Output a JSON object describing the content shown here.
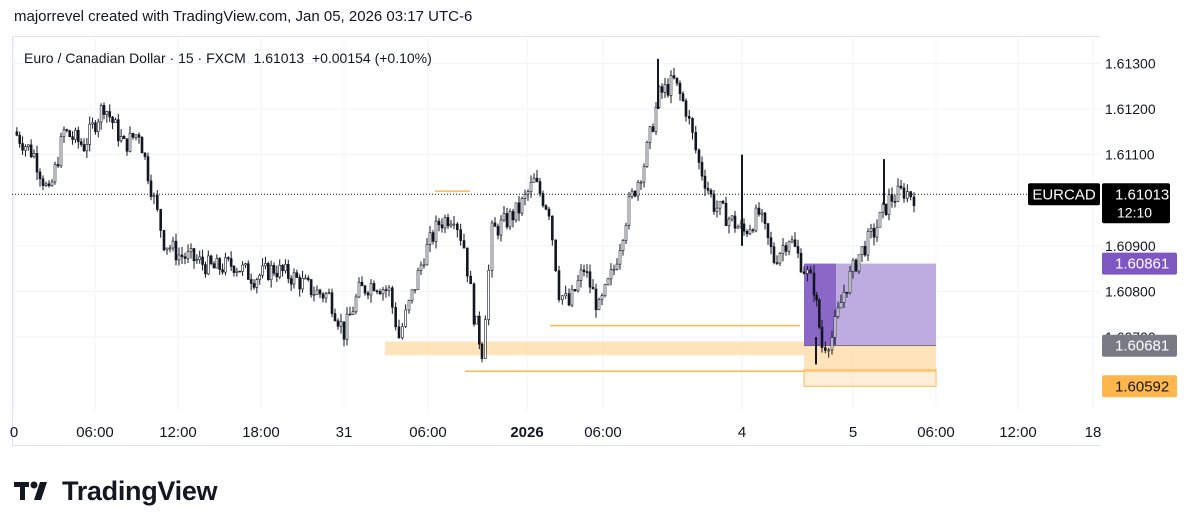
{
  "header": {
    "caption": "majorrevel created with TradingView.com, Jan 05, 2026 03:17 UTC-6",
    "legend": "Euro / Canadian Dollar · 15 · FXCM  1.61013  +0.00154 (+0.10%)"
  },
  "brand": {
    "name": "TradingView"
  },
  "colors": {
    "candle": "#131722",
    "grid": "#f0f3fa",
    "purple": "#7e57c2",
    "purple_fill": "#b39ddb",
    "orange": "#ffb74d",
    "orange_fill": "#ffe0b2",
    "gray_label": "#787b86"
  },
  "chart_data": {
    "type": "candlestick",
    "symbol": "EURCAD",
    "interval": "15",
    "y_ticks": [
      "1.61300",
      "1.61200",
      "1.61100",
      "1.60900",
      "1.60800",
      "1.60700"
    ],
    "x_ticks": [
      "0",
      "06:00",
      "12:00",
      "18:00",
      "31",
      "06:00",
      "2026",
      "06:00",
      "4",
      "5",
      "06:00",
      "12:00",
      "18"
    ],
    "ylim": [
      1.6054,
      1.6136
    ],
    "last_price": {
      "symbol": "EURCAD",
      "value": "1.61013",
      "countdown": "12:10"
    },
    "markers": [
      {
        "label": "1.60861",
        "color": "#7e57c2"
      },
      {
        "label": "1.60681",
        "color": "#787b86"
      },
      {
        "label": "1.60592",
        "color": "#ffb74d"
      }
    ],
    "zones": [
      {
        "name": "purple-box",
        "y_low": 1.60681,
        "y_high": 1.60861
      },
      {
        "name": "orange-box-left",
        "y_low": 1.6066,
        "y_high": 1.6069
      },
      {
        "name": "orange-box-right",
        "y_low": 1.60628,
        "y_high": 1.60681
      }
    ],
    "path": [
      [
        0,
        1.6115
      ],
      [
        20,
        1.611
      ],
      [
        35,
        1.6101
      ],
      [
        50,
        1.6115
      ],
      [
        70,
        1.6112
      ],
      [
        90,
        1.6121
      ],
      [
        110,
        1.6112
      ],
      [
        125,
        1.6115
      ],
      [
        140,
        1.61
      ],
      [
        150,
        1.6091
      ],
      [
        165,
        1.6088
      ],
      [
        180,
        1.6087
      ],
      [
        200,
        1.6085
      ],
      [
        220,
        1.6086
      ],
      [
        240,
        1.6083
      ],
      [
        260,
        1.6085
      ],
      [
        280,
        1.6083
      ],
      [
        300,
        1.608
      ],
      [
        315,
        1.6079
      ],
      [
        330,
        1.6071
      ],
      [
        345,
        1.608
      ],
      [
        360,
        1.6082
      ],
      [
        375,
        1.608
      ],
      [
        385,
        1.607
      ],
      [
        395,
        1.6077
      ],
      [
        410,
        1.6088
      ],
      [
        425,
        1.6095
      ],
      [
        440,
        1.6097
      ],
      [
        450,
        1.609
      ],
      [
        460,
        1.6075
      ],
      [
        468,
        1.6067
      ],
      [
        478,
        1.6093
      ],
      [
        490,
        1.6095
      ],
      [
        505,
        1.6098
      ],
      [
        520,
        1.6104
      ],
      [
        535,
        1.6098
      ],
      [
        545,
        1.608
      ],
      [
        555,
        1.6077
      ],
      [
        570,
        1.6085
      ],
      [
        585,
        1.6076
      ],
      [
        600,
        1.6085
      ],
      [
        615,
        1.6099
      ],
      [
        630,
        1.6108
      ],
      [
        645,
        1.6123
      ],
      [
        660,
        1.6126
      ],
      [
        672,
        1.612
      ],
      [
        685,
        1.6108
      ],
      [
        700,
        1.6099
      ],
      [
        715,
        1.6096
      ],
      [
        730,
        1.6093
      ],
      [
        745,
        1.6097
      ],
      [
        760,
        1.6087
      ],
      [
        775,
        1.6092
      ],
      [
        790,
        1.6085
      ],
      [
        800,
        1.6081
      ],
      [
        808,
        1.6068
      ],
      [
        818,
        1.607
      ],
      [
        830,
        1.608
      ],
      [
        845,
        1.6088
      ],
      [
        860,
        1.6093
      ],
      [
        875,
        1.61
      ],
      [
        890,
        1.6102
      ],
      [
        900,
        1.6101
      ]
    ]
  }
}
